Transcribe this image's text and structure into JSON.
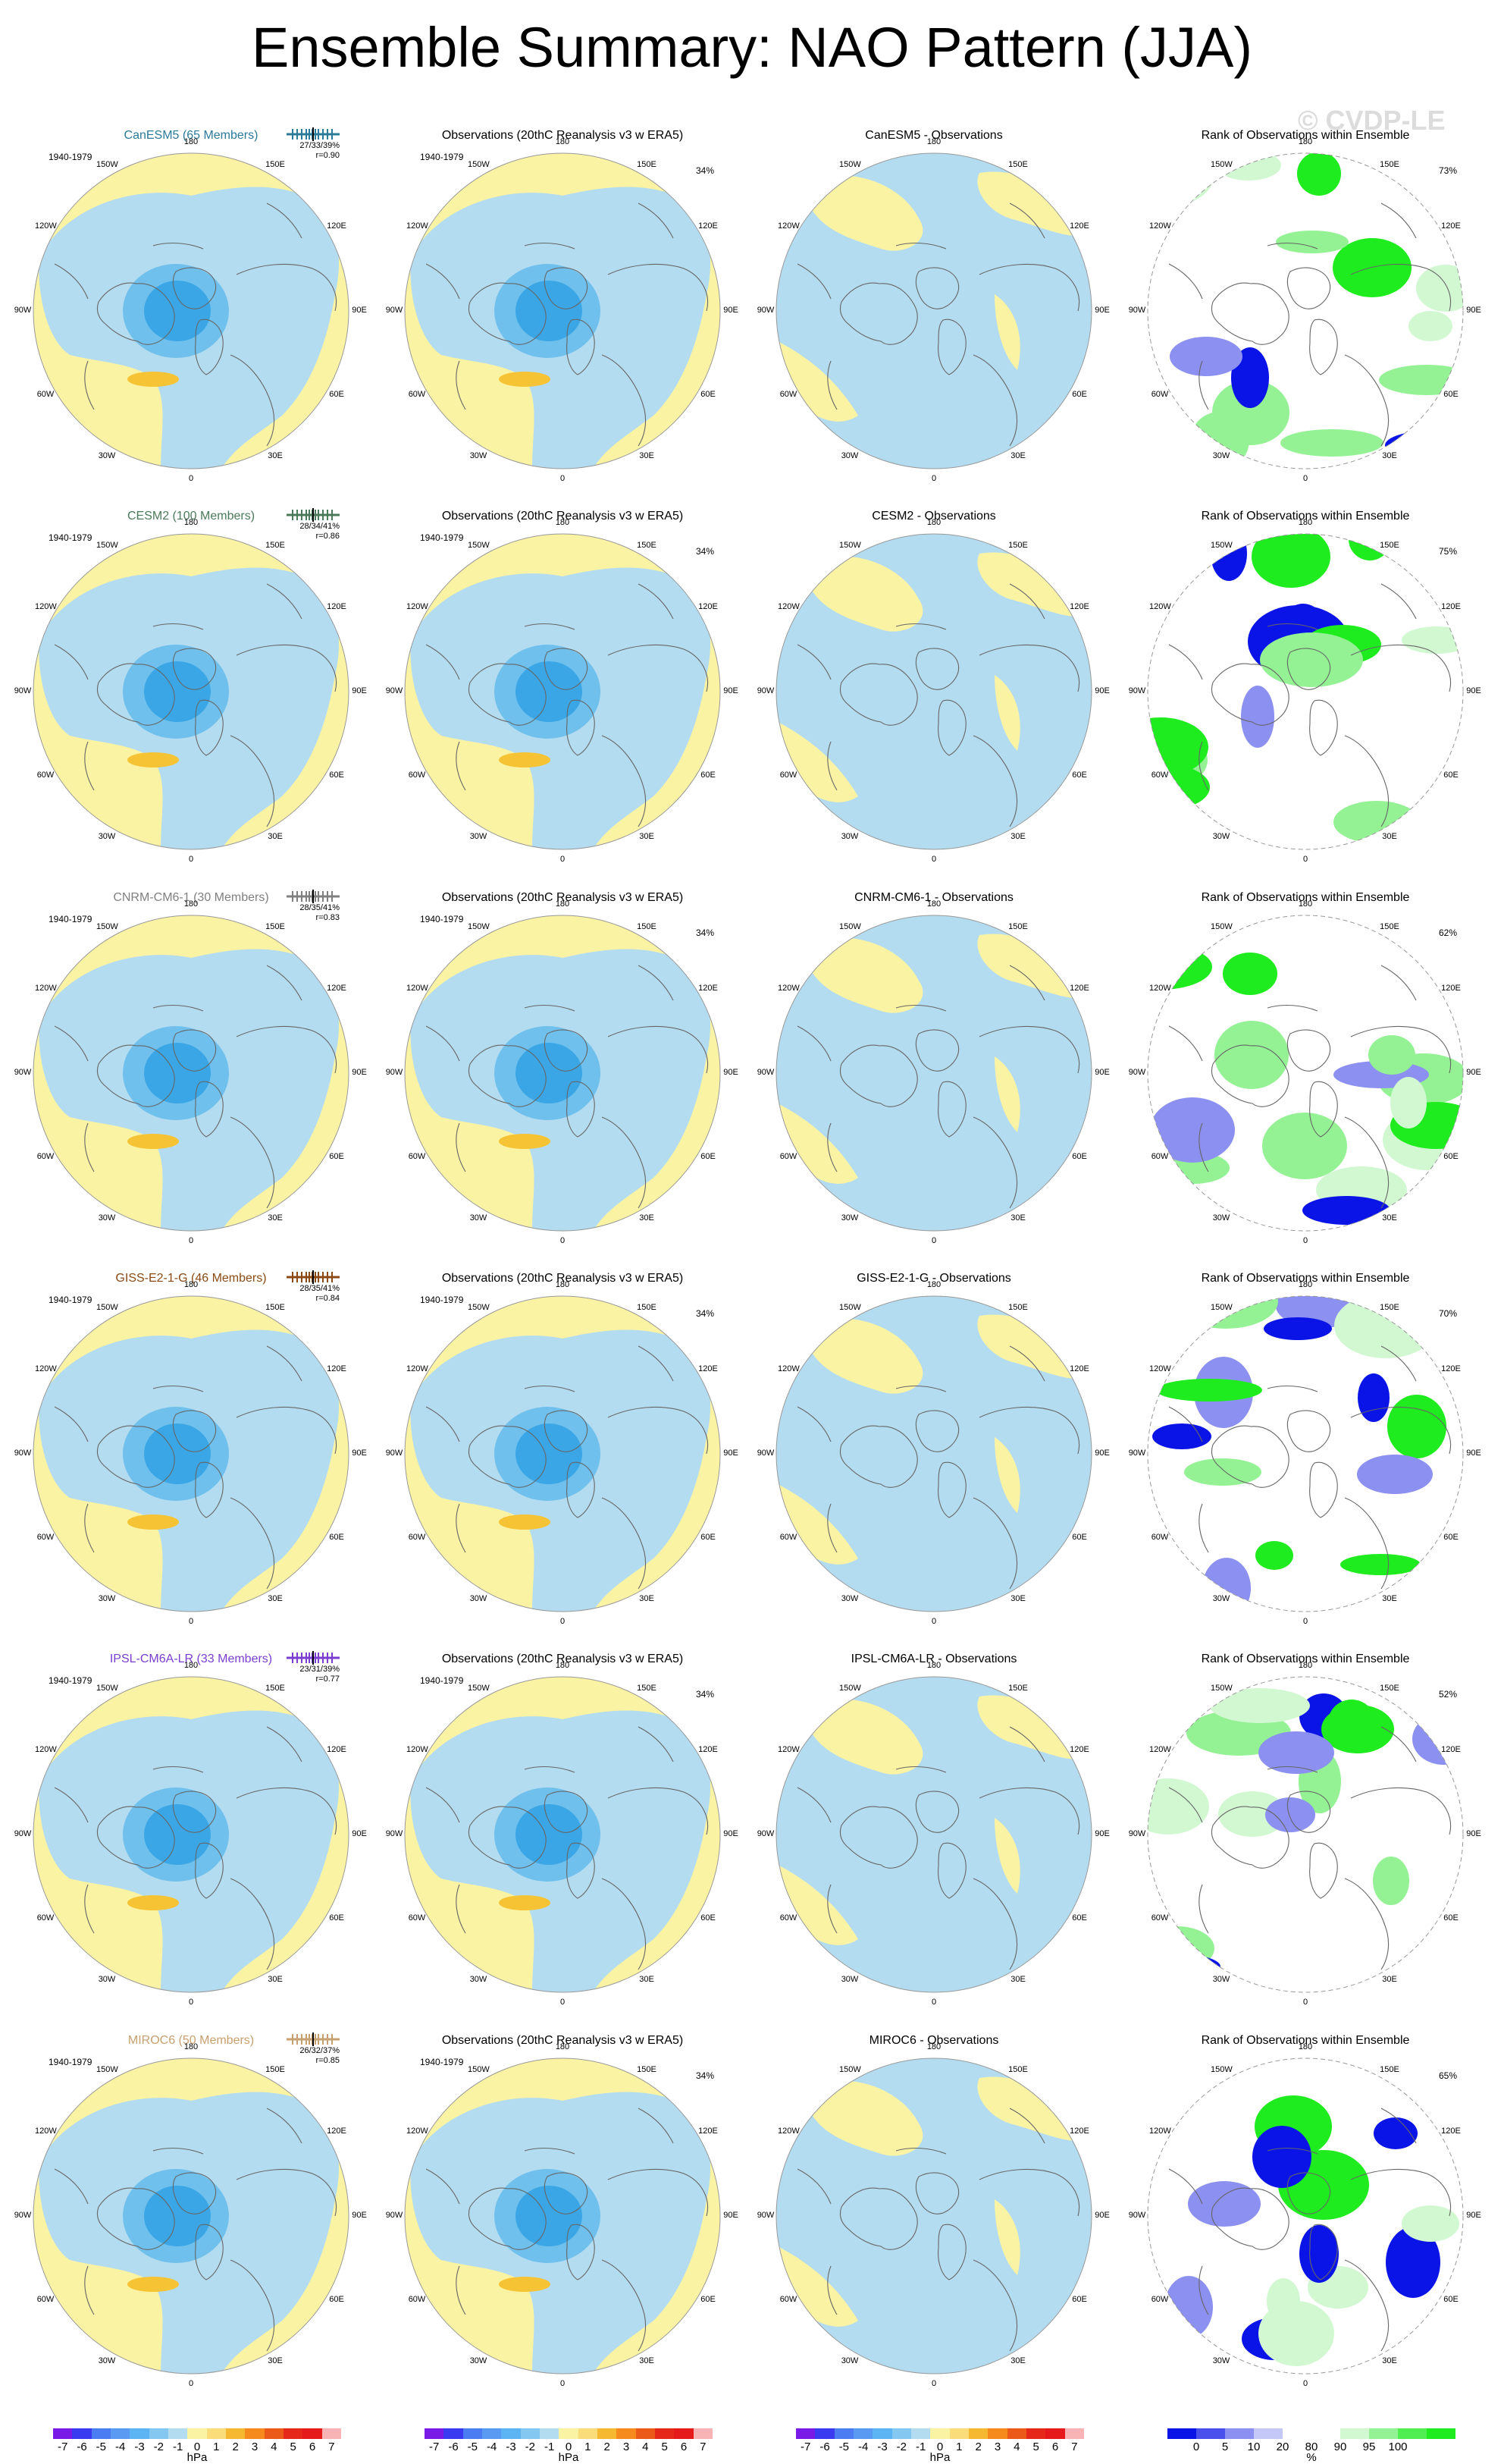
{
  "title": "Ensemble Summary: NAO Pattern (JJA)",
  "watermark": "© CVDP-LE",
  "period": "1940-1979",
  "obs_title": "Observations (20thC Reanalysis v3 w ERA5)",
  "rank_title": "Rank of Observations within Ensemble",
  "obs_pct": "34%",
  "lon_labels": [
    "180",
    "150E",
    "120E",
    "90E",
    "60E",
    "30E",
    "0",
    "30W",
    "60W",
    "90W",
    "120W",
    "150W"
  ],
  "colors": {
    "positive": "#fbf3a4",
    "negative": "#b4dcf0",
    "neg_mid": "#6fc0ec",
    "neg_strong": "#3aa6e6",
    "pos_mid": "#f6c334",
    "green": "#1eec1e",
    "blue": "#0a14e6"
  },
  "rows": [
    {
      "model": "CanESM5 (65 Members)",
      "model_color": "#2b7a99",
      "stats": "27/33/39%",
      "r": "r=0.90",
      "diff_title": "CanESM5 - Observations",
      "rank_pct": "73%"
    },
    {
      "model": "CESM2 (100 Members)",
      "model_color": "#4a7a5a",
      "stats": "28/34/41%",
      "r": "r=0.86",
      "diff_title": "CESM2 - Observations",
      "rank_pct": "75%"
    },
    {
      "model": "CNRM-CM6-1 (30 Members)",
      "model_color": "#808080",
      "stats": "28/35/41%",
      "r": "r=0.83",
      "diff_title": "CNRM-CM6-1 - Observations",
      "rank_pct": "62%"
    },
    {
      "model": "GISS-E2-1-G (46 Members)",
      "model_color": "#8b4a14",
      "stats": "28/35/41%",
      "r": "r=0.84",
      "diff_title": "GISS-E2-1-G - Observations",
      "rank_pct": "70%"
    },
    {
      "model": "IPSL-CM6A-LR (33 Members)",
      "model_color": "#7a3fd0",
      "stats": "23/31/39%",
      "r": "r=0.77",
      "diff_title": "IPSL-CM6A-LR - Observations",
      "rank_pct": "52%"
    },
    {
      "model": "MIROC6 (50 Members)",
      "model_color": "#c8a070",
      "stats": "26/32/37%",
      "r": "r=0.85",
      "diff_title": "MIROC6 - Observations",
      "rank_pct": "65%"
    }
  ],
  "colorbar_hpa": {
    "colors": [
      "#7a1ae6",
      "#3a3af0",
      "#4c7cf2",
      "#5a9af2",
      "#5cb4f2",
      "#84c8f2",
      "#b4dcf0",
      "#fbf3a4",
      "#fbdc7a",
      "#f6b830",
      "#f68a1c",
      "#ec5a1a",
      "#e6281a",
      "#e61a1a",
      "#f8b4b4"
    ],
    "ticks": [
      "-7",
      "-6",
      "-5",
      "-4",
      "-3",
      "-2",
      "-1",
      "0",
      "1",
      "2",
      "3",
      "4",
      "5",
      "6",
      "7"
    ],
    "unit": "hPa"
  },
  "colorbar_rank": {
    "colors": [
      "#0a14e6",
      "#4a50ec",
      "#8c90f0",
      "#c4c8f6",
      "#ffffff",
      "#ffffff",
      "#d2f8d2",
      "#94f294",
      "#50ee50",
      "#1eec1e"
    ],
    "ticks": [
      "0",
      "5",
      "10",
      "20",
      "80",
      "90",
      "95",
      "100"
    ],
    "unit": "%"
  }
}
